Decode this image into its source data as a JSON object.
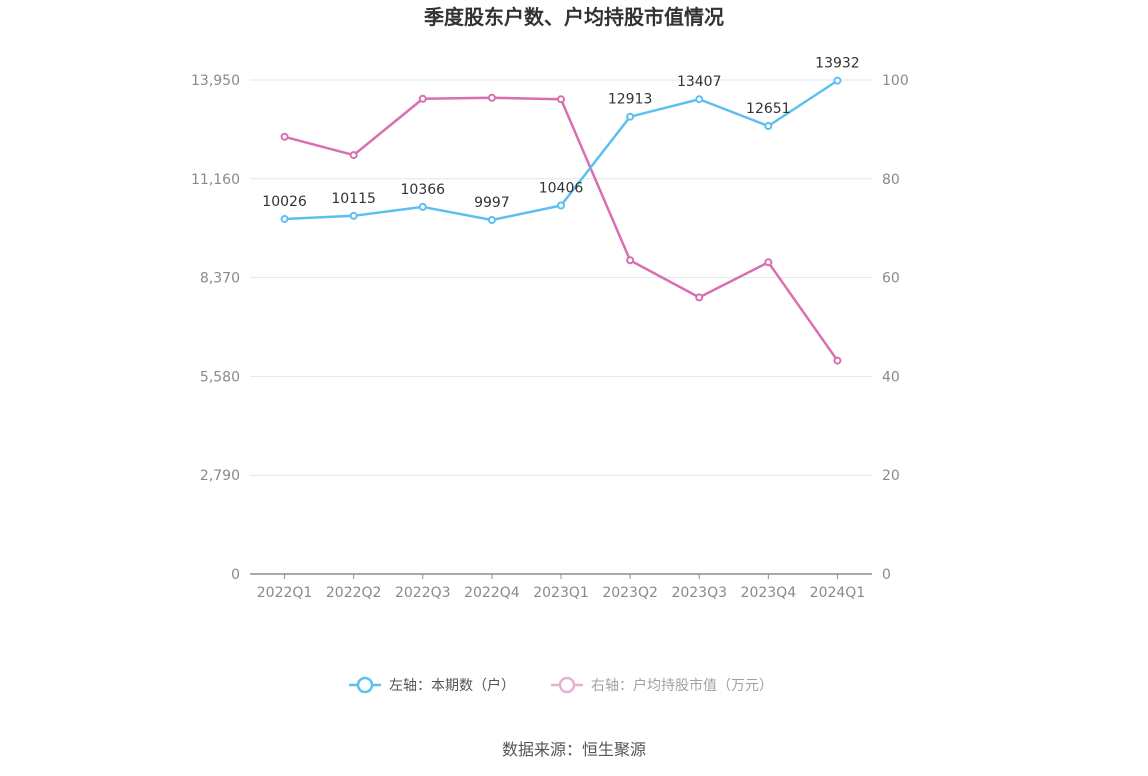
{
  "chart_data": {
    "type": "line",
    "title": "季度股东户数、户均持股市值情况",
    "categories": [
      "2022Q1",
      "2022Q2",
      "2022Q3",
      "2022Q4",
      "2023Q1",
      "2023Q2",
      "2023Q3",
      "2023Q4",
      "2024Q1"
    ],
    "left_axis": {
      "ticks": [
        "0",
        "2,790",
        "5,580",
        "8,370",
        "11,160",
        "13,950"
      ],
      "ylim": [
        0,
        13950
      ]
    },
    "right_axis": {
      "ticks": [
        "0",
        "20",
        "40",
        "60",
        "80",
        "100"
      ],
      "ylim": [
        0,
        100
      ]
    },
    "series": [
      {
        "name": "左轴：本期数（户）",
        "axis": "left",
        "color": "#5bc0f0",
        "values": [
          10026,
          10115,
          10366,
          9997,
          10406,
          12913,
          13407,
          12651,
          13932
        ],
        "labels": [
          "10026",
          "10115",
          "10366",
          "9997",
          "10406",
          "12913",
          "13407",
          "12651",
          "13932"
        ]
      },
      {
        "name": "右轴：户均持股市值（万元）",
        "axis": "right",
        "color": "#d96eb0",
        "values": [
          88.5,
          84.8,
          96.2,
          96.4,
          96.1,
          63.5,
          56.0,
          63.1,
          43.2
        ]
      }
    ],
    "grid": true,
    "legend_position": "bottom"
  },
  "source_text": "数据来源：恒生聚源"
}
